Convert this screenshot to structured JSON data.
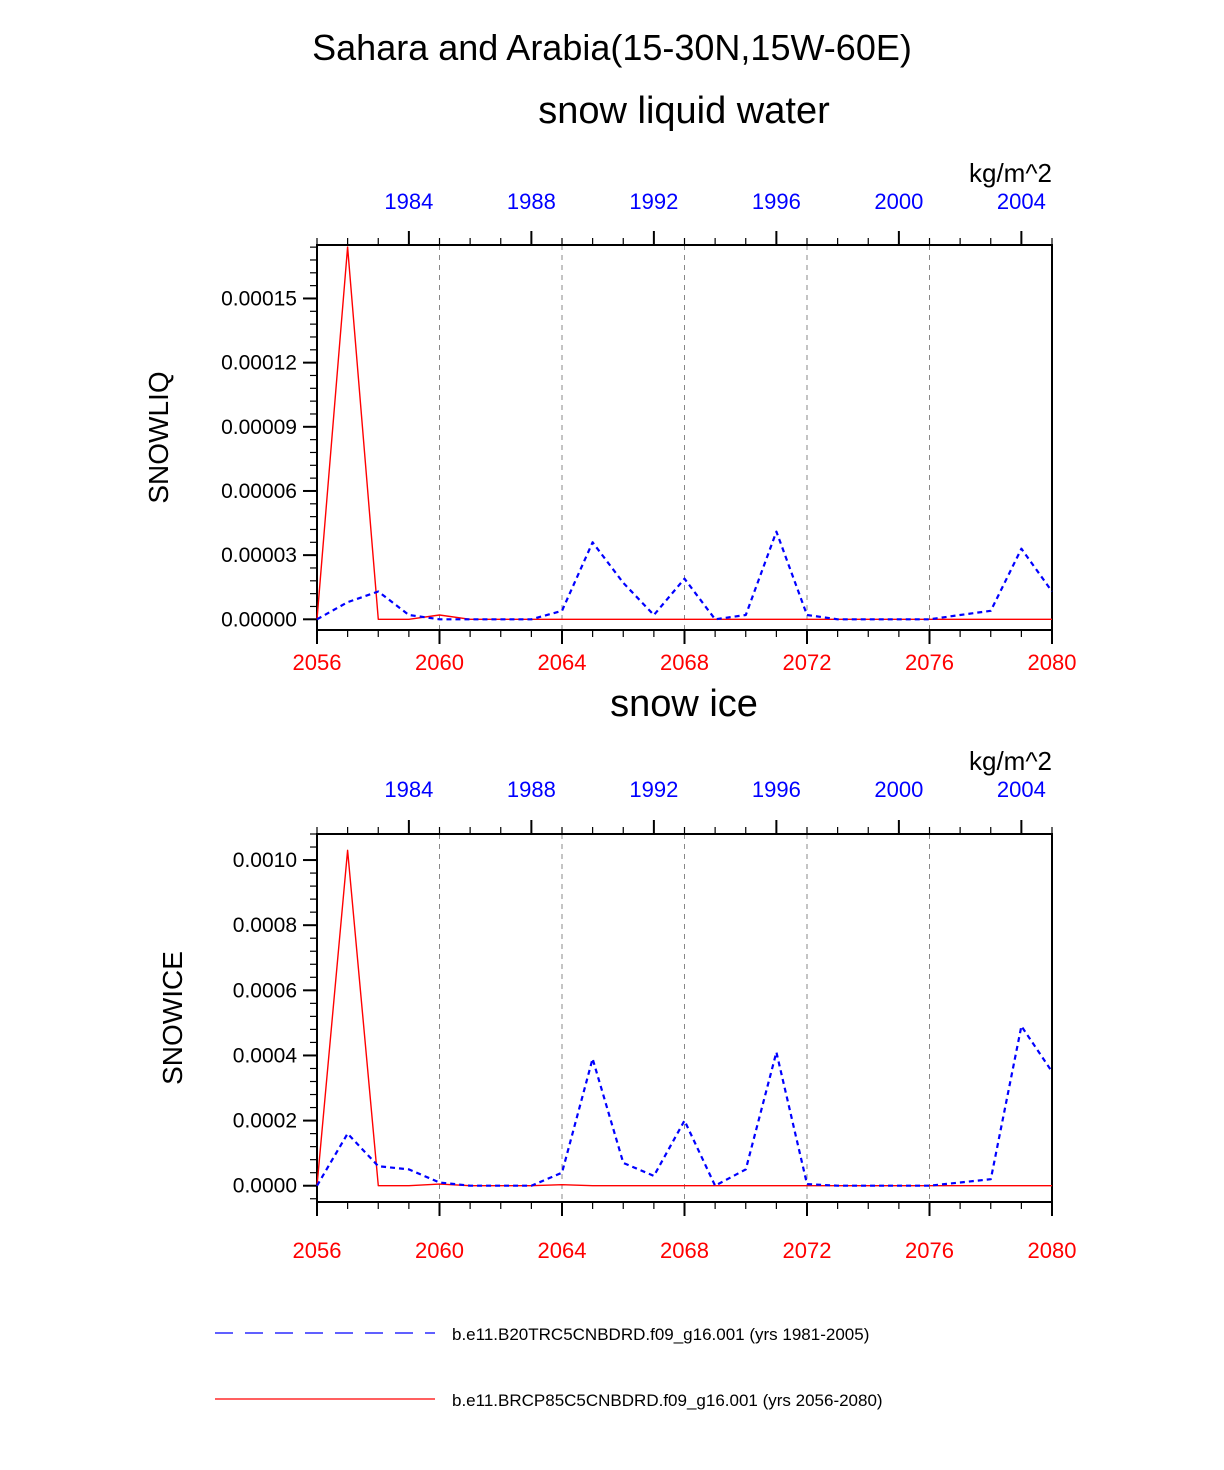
{
  "figure": {
    "title": "Sahara and Arabia(15-30N,15W-60E)"
  },
  "colors": {
    "control": "#0000ff",
    "future": "#ff0000",
    "axis": "#000000",
    "grid": "#888888"
  },
  "legend": {
    "placement": "bottom",
    "items": [
      {
        "label": "b.e11.B20TRC5CNBDRD.f09_g16.001 (yrs 1981-2005)",
        "color": "#0000ff",
        "style": "dashed"
      },
      {
        "label": "b.e11.BRCP85C5CNBDRD.f09_g16.001 (yrs 2056-2080)",
        "color": "#ff0000",
        "style": "solid"
      }
    ]
  },
  "chart_data": [
    {
      "type": "line",
      "title": "snow liquid water",
      "units": "kg/m^2",
      "ylabel": "SNOWLIQ",
      "ylim": [
        -5e-06,
        0.000175
      ],
      "yticks": [
        0,
        3e-05,
        6e-05,
        9e-05,
        0.00012,
        0.00015
      ],
      "ytick_labels": [
        "0.00000",
        "0.00003",
        "0.00006",
        "0.00009",
        "0.00012",
        "0.00015"
      ],
      "yminor_step": 6e-06,
      "x_bottom": {
        "range": [
          2056,
          2080
        ],
        "ticks": [
          2056,
          2060,
          2064,
          2068,
          2072,
          2076,
          2080
        ],
        "color": "#ff0000"
      },
      "x_top": {
        "range": [
          1981,
          2005
        ],
        "ticks": [
          1984,
          1988,
          1992,
          1996,
          2000,
          2004
        ],
        "color": "#0000ff"
      },
      "grid_x": [
        2060,
        2064,
        2068,
        2072,
        2076
      ],
      "series": [
        {
          "name": "b.e11.BRCP85C5CNBDRD.f09_g16.001 (yrs 2056-2080)",
          "axis": "bottom",
          "style": "solid",
          "color": "#ff0000",
          "x": [
            2056,
            2057,
            2058,
            2059,
            2060,
            2061,
            2062,
            2063,
            2064,
            2065,
            2066,
            2067,
            2068,
            2069,
            2070,
            2071,
            2072,
            2073,
            2074,
            2075,
            2076,
            2077,
            2078,
            2079,
            2080
          ],
          "values": [
            0.0,
            0.000174,
            0.0,
            0.0,
            2e-06,
            0.0,
            0.0,
            0.0,
            0.0,
            0.0,
            0.0,
            0.0,
            0.0,
            0.0,
            0.0,
            0.0,
            0.0,
            0.0,
            0.0,
            0.0,
            0.0,
            0.0,
            0.0,
            0.0,
            0.0
          ]
        },
        {
          "name": "b.e11.B20TRC5CNBDRD.f09_g16.001 (yrs 1981-2005)",
          "axis": "top",
          "style": "dashed",
          "color": "#0000ff",
          "x": [
            1981,
            1982,
            1983,
            1984,
            1985,
            1986,
            1987,
            1988,
            1989,
            1990,
            1991,
            1992,
            1993,
            1994,
            1995,
            1996,
            1997,
            1998,
            1999,
            2000,
            2001,
            2002,
            2003,
            2004,
            2005
          ],
          "values": [
            0.0,
            8e-06,
            1.3e-05,
            2e-06,
            0.0,
            0.0,
            0.0,
            0.0,
            4e-06,
            3.6e-05,
            1.7e-05,
            2e-06,
            1.9e-05,
            0.0,
            2e-06,
            4.1e-05,
            2e-06,
            0.0,
            0.0,
            0.0,
            0.0,
            2e-06,
            4e-06,
            3.3e-05,
            1.3e-05
          ]
        }
      ]
    },
    {
      "type": "line",
      "title": "snow ice",
      "units": "kg/m^2",
      "ylabel": "SNOWICE",
      "ylim": [
        -5e-05,
        0.00108
      ],
      "yticks": [
        0,
        0.0002,
        0.0004,
        0.0006,
        0.0008,
        0.001
      ],
      "ytick_labels": [
        "0.0000",
        "0.0002",
        "0.0004",
        "0.0006",
        "0.0008",
        "0.0010"
      ],
      "yminor_step": 4e-05,
      "x_bottom": {
        "range": [
          2056,
          2080
        ],
        "ticks": [
          2056,
          2060,
          2064,
          2068,
          2072,
          2076,
          2080
        ],
        "color": "#ff0000"
      },
      "x_top": {
        "range": [
          1981,
          2005
        ],
        "ticks": [
          1984,
          1988,
          1992,
          1996,
          2000,
          2004
        ],
        "color": "#0000ff"
      },
      "grid_x": [
        2060,
        2064,
        2068,
        2072,
        2076
      ],
      "series": [
        {
          "name": "b.e11.BRCP85C5CNBDRD.f09_g16.001 (yrs 2056-2080)",
          "axis": "bottom",
          "style": "solid",
          "color": "#ff0000",
          "x": [
            2056,
            2057,
            2058,
            2059,
            2060,
            2061,
            2062,
            2063,
            2064,
            2065,
            2066,
            2067,
            2068,
            2069,
            2070,
            2071,
            2072,
            2073,
            2074,
            2075,
            2076,
            2077,
            2078,
            2079,
            2080
          ],
          "values": [
            0.0,
            0.00103,
            0.0,
            0.0,
            5e-06,
            0.0,
            0.0,
            0.0,
            3e-06,
            0.0,
            0.0,
            0.0,
            0.0,
            0.0,
            0.0,
            0.0,
            0.0,
            0.0,
            0.0,
            0.0,
            0.0,
            0.0,
            0.0,
            0.0,
            0.0
          ]
        },
        {
          "name": "b.e11.B20TRC5CNBDRD.f09_g16.001 (yrs 1981-2005)",
          "axis": "top",
          "style": "dashed",
          "color": "#0000ff",
          "x": [
            1981,
            1982,
            1983,
            1984,
            1985,
            1986,
            1987,
            1988,
            1989,
            1990,
            1991,
            1992,
            1993,
            1994,
            1995,
            1996,
            1997,
            1998,
            1999,
            2000,
            2001,
            2002,
            2003,
            2004,
            2005
          ],
          "values": [
            0.0,
            0.00016,
            6e-05,
            5e-05,
            1e-05,
            0.0,
            0.0,
            0.0,
            4e-05,
            0.00039,
            7e-05,
            3e-05,
            0.0002,
            0.0,
            5e-05,
            0.00041,
            5e-06,
            0.0,
            0.0,
            0.0,
            0.0,
            1e-05,
            2e-05,
            0.00049,
            0.00035
          ]
        }
      ]
    }
  ]
}
